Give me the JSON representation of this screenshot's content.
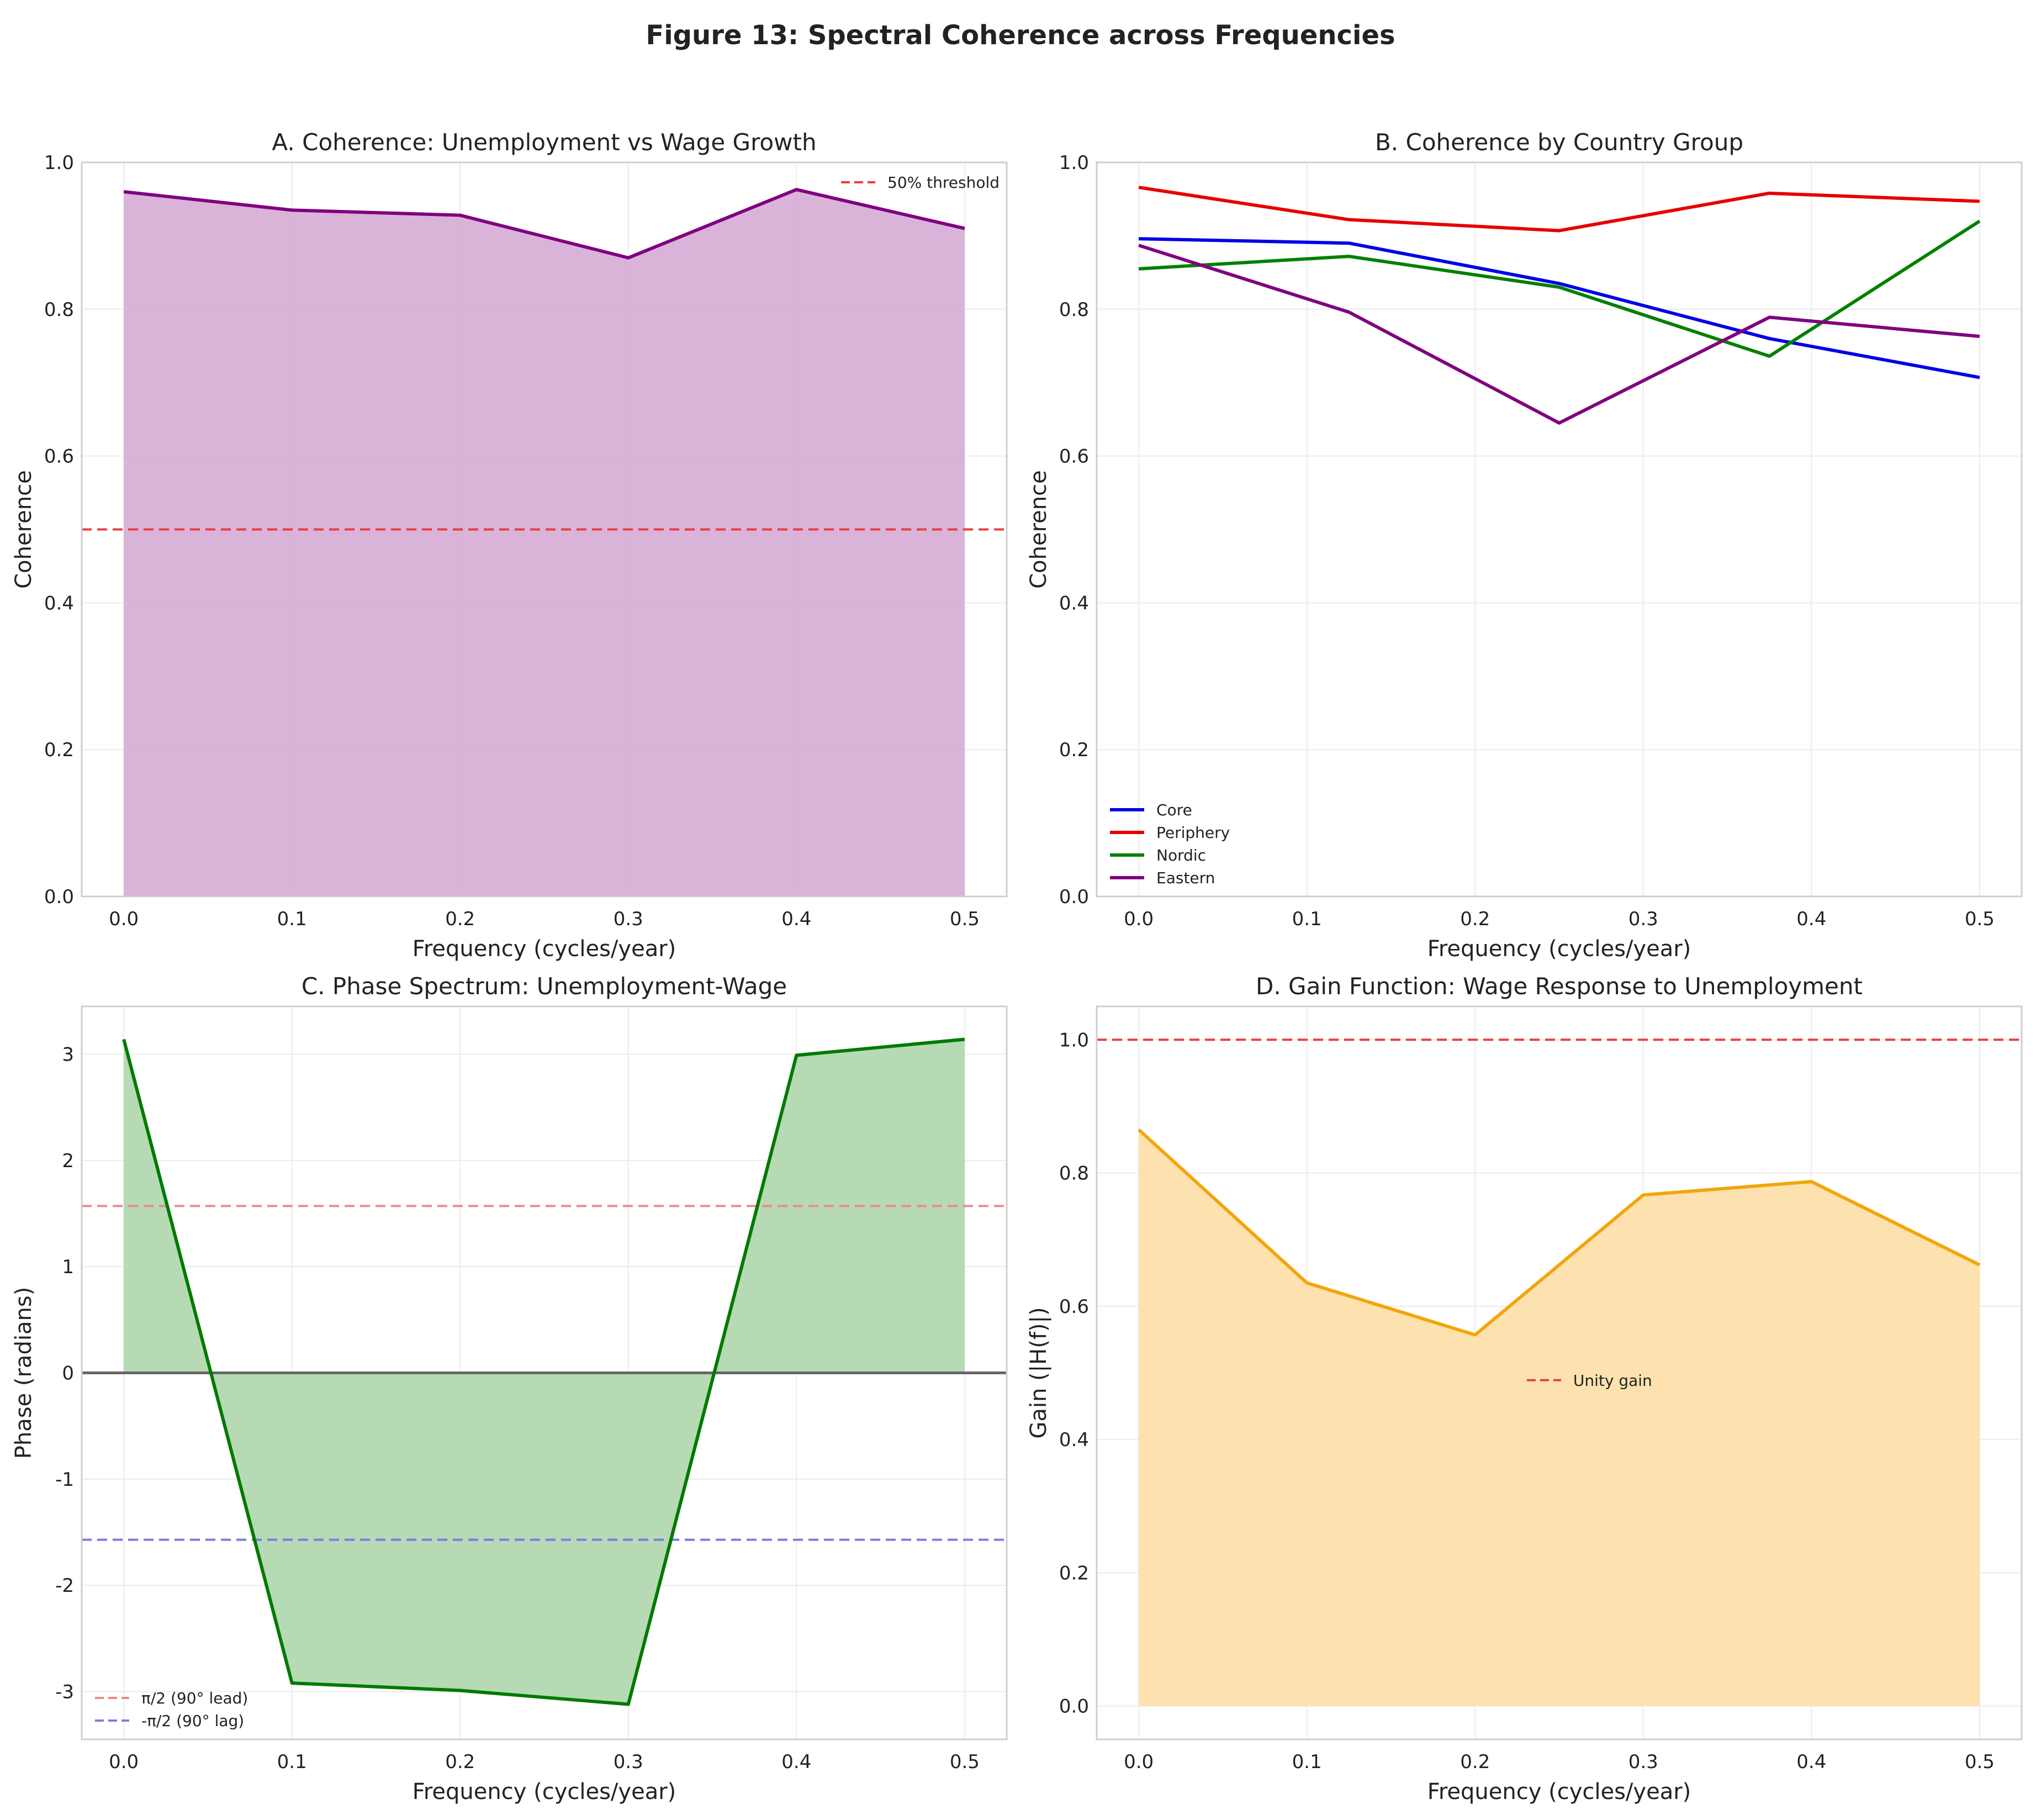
{
  "figure_title": "Figure 13: Spectral Coherence across Frequencies",
  "chart_data": [
    {
      "id": "A",
      "type": "area",
      "title": "A. Coherence: Unemployment vs Wage Growth",
      "xlabel": "Frequency (cycles/year)",
      "ylabel": "Coherence",
      "xlim": [
        -0.025,
        0.525
      ],
      "ylim": [
        0.0,
        1.0
      ],
      "xticks": [
        0.0,
        0.1,
        0.2,
        0.3,
        0.4,
        0.5
      ],
      "xtick_labels": [
        "0.0",
        "0.1",
        "0.2",
        "0.3",
        "0.4",
        "0.5"
      ],
      "yticks": [
        0.0,
        0.2,
        0.4,
        0.6,
        0.8,
        1.0
      ],
      "ytick_labels": [
        "0.0",
        "0.2",
        "0.4",
        "0.6",
        "0.8",
        "1.0"
      ],
      "grid": true,
      "legend_position": "top-right",
      "series": [
        {
          "name": "Coherence",
          "x": [
            0.0,
            0.1,
            0.2,
            0.3,
            0.4,
            0.5
          ],
          "values": [
            0.96,
            0.935,
            0.928,
            0.87,
            0.963,
            0.91
          ],
          "color": "#800080",
          "fill": "#d8afd6",
          "fill_to": 0
        }
      ],
      "hlines": [
        {
          "y": 0.5,
          "color": "#e83e3e",
          "label": "50% threshold",
          "in_legend": true
        }
      ]
    },
    {
      "id": "B",
      "type": "line",
      "title": "B. Coherence by Country Group",
      "xlabel": "Frequency (cycles/year)",
      "ylabel": "Coherence",
      "xlim": [
        -0.025,
        0.525
      ],
      "ylim": [
        0.0,
        1.0
      ],
      "xticks": [
        0.0,
        0.1,
        0.2,
        0.3,
        0.4,
        0.5
      ],
      "xtick_labels": [
        "0.0",
        "0.1",
        "0.2",
        "0.3",
        "0.4",
        "0.5"
      ],
      "yticks": [
        0.0,
        0.2,
        0.4,
        0.6,
        0.8,
        1.0
      ],
      "ytick_labels": [
        "0.0",
        "0.2",
        "0.4",
        "0.6",
        "0.8",
        "1.0"
      ],
      "grid": true,
      "legend_position": "bottom-left",
      "series": [
        {
          "name": "Core",
          "x": [
            0.0,
            0.125,
            0.25,
            0.375,
            0.5
          ],
          "values": [
            0.896,
            0.89,
            0.835,
            0.76,
            0.707
          ],
          "color": "#0000e6"
        },
        {
          "name": "Periphery",
          "x": [
            0.0,
            0.125,
            0.25,
            0.375,
            0.5
          ],
          "values": [
            0.966,
            0.922,
            0.907,
            0.958,
            0.947
          ],
          "color": "#e60000"
        },
        {
          "name": "Nordic",
          "x": [
            0.0,
            0.125,
            0.25,
            0.375,
            0.5
          ],
          "values": [
            0.855,
            0.872,
            0.83,
            0.736,
            0.92
          ],
          "color": "#008000"
        },
        {
          "name": "Eastern",
          "x": [
            0.0,
            0.125,
            0.25,
            0.375,
            0.5
          ],
          "values": [
            0.887,
            0.796,
            0.645,
            0.789,
            0.763
          ],
          "color": "#800080"
        }
      ],
      "hlines": []
    },
    {
      "id": "C",
      "type": "area",
      "title": "C. Phase Spectrum: Unemployment-Wage",
      "xlabel": "Frequency (cycles/year)",
      "ylabel": "Phase (radians)",
      "xlim": [
        -0.025,
        0.525
      ],
      "ylim": [
        -3.45,
        3.45
      ],
      "xticks": [
        0.0,
        0.1,
        0.2,
        0.3,
        0.4,
        0.5
      ],
      "xtick_labels": [
        "0.0",
        "0.1",
        "0.2",
        "0.3",
        "0.4",
        "0.5"
      ],
      "yticks": [
        -3,
        -2,
        -1,
        0,
        1,
        2,
        3
      ],
      "ytick_labels": [
        "-3",
        "-2",
        "-1",
        "0",
        "1",
        "2",
        "3"
      ],
      "grid": true,
      "legend_position": "bottom-left",
      "series": [
        {
          "name": "Phase",
          "x": [
            0.0,
            0.1,
            0.2,
            0.3,
            0.4,
            0.5
          ],
          "values": [
            3.14,
            -2.92,
            -2.99,
            -3.12,
            2.99,
            3.14
          ],
          "color": "#007a00",
          "fill": "#b2d8b0",
          "fill_to": 0
        }
      ],
      "hlines": [
        {
          "y": 1.5708,
          "color": "#ee8a8a",
          "label": "π/2 (90° lead)",
          "in_legend": true
        },
        {
          "y": -1.5708,
          "color": "#7b7be8",
          "label": "-π/2 (90° lag)",
          "in_legend": true
        },
        {
          "y": 0,
          "color": "#666666",
          "label": "",
          "in_legend": false,
          "solid": true
        }
      ]
    },
    {
      "id": "D",
      "type": "area",
      "title": "D. Gain Function: Wage Response to Unemployment",
      "xlabel": "Frequency (cycles/year)",
      "ylabel": "Gain (|H(f)|)",
      "xlim": [
        -0.025,
        0.525
      ],
      "ylim": [
        -0.05,
        1.05
      ],
      "xticks": [
        0.0,
        0.1,
        0.2,
        0.3,
        0.4,
        0.5
      ],
      "xtick_labels": [
        "0.0",
        "0.1",
        "0.2",
        "0.3",
        "0.4",
        "0.5"
      ],
      "yticks": [
        0.0,
        0.2,
        0.4,
        0.6,
        0.8,
        1.0
      ],
      "ytick_labels": [
        "0.0",
        "0.2",
        "0.4",
        "0.6",
        "0.8",
        "1.0"
      ],
      "grid": true,
      "legend_position": "center",
      "series": [
        {
          "name": "Gain",
          "x": [
            0.0,
            0.1,
            0.2,
            0.3,
            0.4,
            0.5
          ],
          "values": [
            0.865,
            0.635,
            0.557,
            0.767,
            0.787,
            0.662
          ],
          "color": "#f2a50c",
          "fill": "#fde0ab",
          "fill_to": 0
        }
      ],
      "hlines": [
        {
          "y": 1.0,
          "color": "#e83e3e",
          "label": "Unity gain",
          "in_legend": true
        }
      ]
    }
  ]
}
